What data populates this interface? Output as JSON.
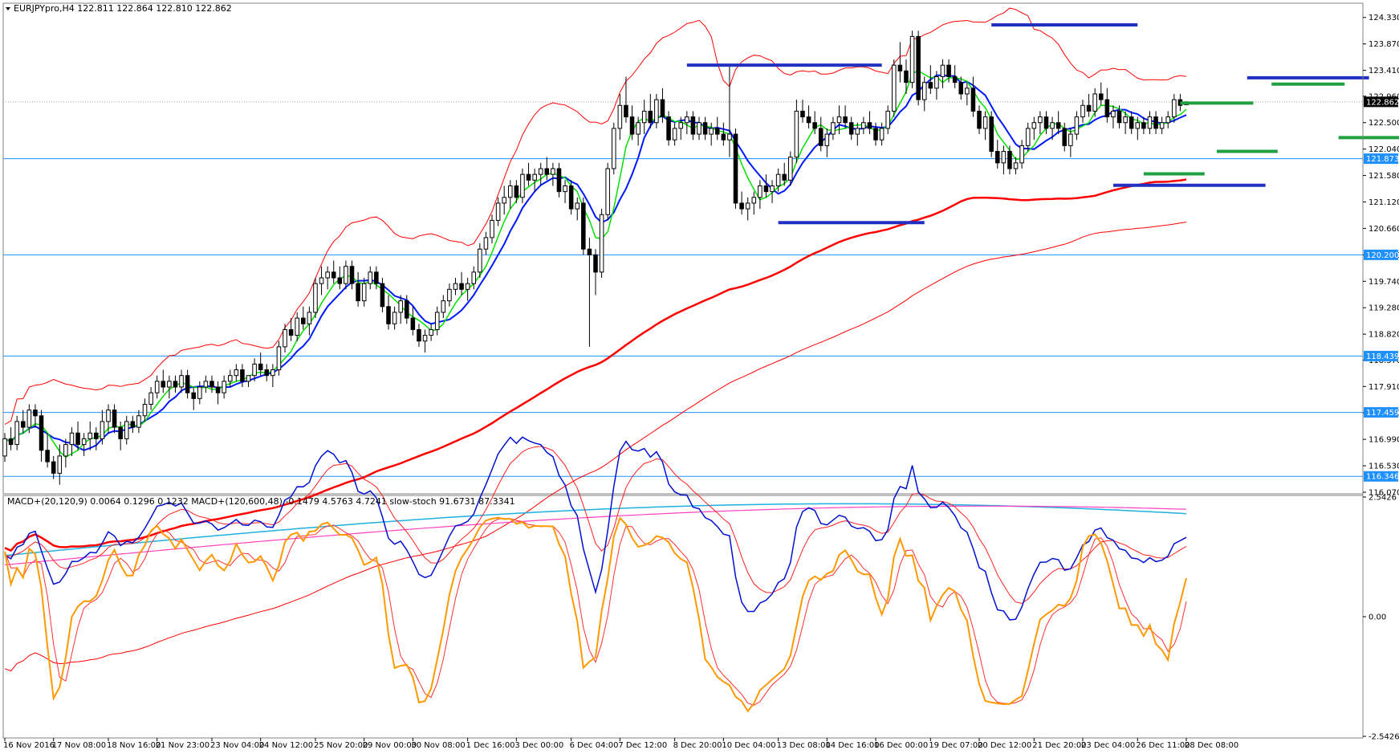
{
  "header": {
    "main_info": "EURJPYpro,H4  122.811 122.864 122.810 122.862",
    "indicator_info": "MACD+(20,120,9) 0.0064 0.1296 0.1232   MACD+(120,600,48) -0.1479 4.5763 4.7241   slow-stoch 91.6731 87.3341"
  },
  "colors": {
    "bull_body": "#ffffff",
    "bear_body": "#000000",
    "ma_green": "#00e000",
    "ma_blue": "#0018ff",
    "ma_red_thick": "#ff0000",
    "envelope_red": "#ff0000",
    "level_line": "#1e90ff",
    "lbl_blue": "#1e90ff",
    "sr_blue": "#2030c0",
    "sr_green": "#20a040",
    "stoch_orange": "#ff9900",
    "stoch_red": "#ff3030",
    "macd_blue": "#0010d0",
    "macd_red": "#ff2020",
    "macd_cyan": "#20b0e0",
    "macd_magenta": "#ff40c0"
  },
  "chart_data": {
    "type": "candlestick",
    "symbol": "EURJPYpro",
    "timeframe": "H4",
    "ylim": [
      116.07,
      124.55
    ],
    "y_ticks": [
      "124.330",
      "123.870",
      "123.410",
      "122.960",
      "122.500",
      "122.040",
      "121.580",
      "121.120",
      "120.660",
      "120.200",
      "119.740",
      "119.280",
      "118.820",
      "118.370",
      "117.910",
      "117.450",
      "116.990",
      "116.530",
      "116.070"
    ],
    "x_ticks": [
      "16 Nov 2016",
      "17 Nov 08:00",
      "18 Nov 16:00",
      "21 Nov 23:00",
      "23 Nov 04:00",
      "24 Nov 12:00",
      "25 Nov 20:00",
      "29 Nov 00:00",
      "30 Nov 08:00",
      "1 Dec 16:00",
      "3 Dec 00:00",
      "6 Dec 04:00",
      "7 Dec 12:00",
      "8 Dec 20:00",
      "10 Dec 04:00",
      "13 Dec 08:00",
      "14 Dec 16:00",
      "16 Dec 00:00",
      "19 Dec 07:00",
      "20 Dec 12:00",
      "21 Dec 20:00",
      "23 Dec 04:00",
      "26 Dec 11:00",
      "28 Dec 08:00"
    ],
    "current_price": 122.862,
    "current_price_label": "122.862",
    "horizontal_levels": [
      {
        "price": 121.873,
        "label": "121.873"
      },
      {
        "price": 120.2,
        "label": "120.200"
      },
      {
        "price": 118.439,
        "label": "118.439"
      },
      {
        "price": 117.459,
        "label": "117.459"
      },
      {
        "price": 116.346,
        "label": "116.346"
      }
    ],
    "sr_segments": [
      {
        "t1": 112,
        "t2": 144,
        "price": 123.5,
        "kind": "blue"
      },
      {
        "t1": 162,
        "t2": 186,
        "price": 124.2,
        "kind": "blue"
      },
      {
        "t1": 127,
        "t2": 151,
        "price": 120.76,
        "kind": "blue"
      },
      {
        "t1": 182,
        "t2": 207,
        "price": 121.41,
        "kind": "blue"
      },
      {
        "t1": 204,
        "t2": 224,
        "price": 123.28,
        "kind": "blue"
      },
      {
        "t1": 193,
        "t2": 205,
        "price": 122.84,
        "kind": "green"
      },
      {
        "t1": 187,
        "t2": 197,
        "price": 121.61,
        "kind": "green"
      },
      {
        "t1": 199,
        "t2": 209,
        "price": 122.0,
        "kind": "green"
      },
      {
        "t1": 208,
        "t2": 220,
        "price": 123.17,
        "kind": "green"
      },
      {
        "t1": 219,
        "t2": 230,
        "price": 122.24,
        "kind": "green"
      }
    ],
    "candles": [
      [
        116.7,
        117.1,
        116.6,
        117.0
      ],
      [
        117.0,
        117.2,
        116.8,
        116.9
      ],
      [
        116.9,
        117.4,
        116.8,
        117.3
      ],
      [
        117.3,
        117.5,
        117.1,
        117.2
      ],
      [
        117.2,
        117.6,
        117.1,
        117.5
      ],
      [
        117.5,
        117.6,
        117.2,
        117.4
      ],
      [
        117.4,
        117.5,
        116.6,
        116.8
      ],
      [
        116.8,
        117.1,
        116.5,
        116.6
      ],
      [
        116.6,
        116.7,
        116.3,
        116.4
      ],
      [
        116.4,
        116.9,
        116.2,
        116.7
      ],
      [
        116.7,
        117.0,
        116.5,
        116.9
      ],
      [
        116.9,
        117.2,
        116.7,
        117.1
      ],
      [
        117.1,
        117.3,
        116.8,
        116.9
      ],
      [
        116.9,
        117.1,
        116.7,
        117.0
      ],
      [
        117.0,
        117.3,
        116.8,
        117.1
      ],
      [
        117.1,
        117.2,
        116.8,
        117.0
      ],
      [
        117.0,
        117.5,
        116.9,
        117.3
      ],
      [
        117.3,
        117.6,
        117.1,
        117.5
      ],
      [
        117.5,
        117.6,
        117.1,
        117.2
      ],
      [
        117.2,
        117.3,
        116.8,
        117.0
      ],
      [
        117.0,
        117.4,
        116.9,
        117.3
      ],
      [
        117.3,
        117.4,
        117.1,
        117.2
      ],
      [
        117.2,
        117.5,
        117.1,
        117.4
      ],
      [
        117.4,
        117.7,
        117.3,
        117.6
      ],
      [
        117.6,
        117.9,
        117.5,
        117.8
      ],
      [
        117.8,
        118.1,
        117.7,
        118.0
      ],
      [
        118.0,
        118.2,
        117.8,
        117.9
      ],
      [
        117.9,
        118.1,
        117.7,
        118.0
      ],
      [
        118.0,
        118.1,
        117.8,
        117.9
      ],
      [
        117.9,
        118.2,
        117.8,
        118.1
      ],
      [
        118.1,
        118.2,
        117.7,
        117.8
      ],
      [
        117.8,
        117.9,
        117.5,
        117.7
      ],
      [
        117.7,
        118.0,
        117.6,
        117.9
      ],
      [
        117.9,
        118.1,
        117.8,
        118.0
      ],
      [
        118.0,
        118.1,
        117.8,
        117.9
      ],
      [
        117.9,
        118.0,
        117.6,
        117.8
      ],
      [
        117.8,
        118.1,
        117.7,
        118.0
      ],
      [
        118.0,
        118.2,
        117.9,
        118.1
      ],
      [
        118.1,
        118.3,
        118.0,
        118.2
      ],
      [
        118.2,
        118.3,
        117.9,
        118.0
      ],
      [
        118.0,
        118.1,
        117.9,
        118.1
      ],
      [
        118.1,
        118.4,
        118.0,
        118.3
      ],
      [
        118.3,
        118.5,
        118.1,
        118.2
      ],
      [
        118.2,
        118.3,
        118.0,
        118.1
      ],
      [
        118.1,
        118.3,
        117.9,
        118.2
      ],
      [
        118.2,
        118.7,
        118.1,
        118.6
      ],
      [
        118.6,
        119.0,
        118.5,
        118.9
      ],
      [
        118.9,
        119.1,
        118.7,
        118.8
      ],
      [
        118.8,
        119.2,
        118.7,
        119.1
      ],
      [
        119.1,
        119.3,
        118.9,
        119.0
      ],
      [
        119.0,
        119.3,
        118.8,
        119.2
      ],
      [
        119.2,
        119.8,
        119.1,
        119.7
      ],
      [
        119.7,
        120.0,
        119.5,
        119.8
      ],
      [
        119.8,
        120.0,
        119.6,
        119.9
      ],
      [
        119.9,
        120.1,
        119.7,
        119.8
      ],
      [
        119.8,
        120.0,
        119.6,
        119.7
      ],
      [
        119.7,
        120.1,
        119.6,
        120.0
      ],
      [
        120.0,
        120.1,
        119.6,
        119.7
      ],
      [
        119.7,
        119.9,
        119.3,
        119.4
      ],
      [
        119.4,
        119.8,
        119.3,
        119.7
      ],
      [
        119.7,
        120.0,
        119.6,
        119.9
      ],
      [
        119.9,
        120.0,
        119.6,
        119.7
      ],
      [
        119.7,
        119.8,
        119.2,
        119.3
      ],
      [
        119.3,
        119.5,
        118.9,
        119.0
      ],
      [
        119.0,
        119.3,
        118.9,
        119.2
      ],
      [
        119.2,
        119.5,
        119.0,
        119.4
      ],
      [
        119.4,
        119.5,
        119.0,
        119.1
      ],
      [
        119.1,
        119.3,
        118.8,
        118.9
      ],
      [
        118.9,
        119.0,
        118.6,
        118.7
      ],
      [
        118.7,
        118.9,
        118.5,
        118.8
      ],
      [
        118.8,
        119.0,
        118.7,
        118.9
      ],
      [
        118.9,
        119.3,
        118.8,
        119.2
      ],
      [
        119.2,
        119.5,
        119.1,
        119.4
      ],
      [
        119.4,
        119.7,
        119.3,
        119.6
      ],
      [
        119.6,
        119.8,
        119.5,
        119.7
      ],
      [
        119.7,
        119.9,
        119.5,
        119.6
      ],
      [
        119.6,
        119.8,
        119.4,
        119.7
      ],
      [
        119.7,
        120.0,
        119.6,
        119.9
      ],
      [
        119.9,
        120.4,
        119.8,
        120.3
      ],
      [
        120.3,
        120.6,
        120.2,
        120.5
      ],
      [
        120.5,
        120.9,
        120.4,
        120.8
      ],
      [
        120.8,
        121.2,
        120.7,
        121.1
      ],
      [
        121.1,
        121.4,
        120.9,
        121.2
      ],
      [
        121.2,
        121.5,
        121.0,
        121.4
      ],
      [
        121.4,
        121.5,
        121.1,
        121.2
      ],
      [
        121.2,
        121.7,
        121.1,
        121.6
      ],
      [
        121.6,
        121.8,
        121.4,
        121.5
      ],
      [
        121.5,
        121.7,
        121.3,
        121.6
      ],
      [
        121.6,
        121.8,
        121.4,
        121.7
      ],
      [
        121.7,
        121.9,
        121.5,
        121.6
      ],
      [
        121.6,
        121.8,
        121.4,
        121.7
      ],
      [
        121.7,
        121.8,
        121.2,
        121.3
      ],
      [
        121.3,
        121.5,
        121.1,
        121.4
      ],
      [
        121.4,
        121.5,
        120.9,
        121.0
      ],
      [
        121.0,
        121.2,
        120.8,
        121.1
      ],
      [
        121.1,
        121.2,
        120.2,
        120.3
      ],
      [
        120.3,
        120.5,
        118.6,
        120.2
      ],
      [
        120.2,
        120.3,
        119.5,
        119.9
      ],
      [
        119.9,
        121.0,
        119.8,
        120.9
      ],
      [
        120.9,
        121.8,
        120.8,
        121.7
      ],
      [
        121.7,
        122.5,
        121.6,
        122.4
      ],
      [
        122.4,
        123.0,
        122.2,
        122.8
      ],
      [
        122.8,
        123.3,
        122.5,
        122.6
      ],
      [
        122.6,
        122.8,
        122.2,
        122.3
      ],
      [
        122.3,
        122.6,
        122.1,
        122.5
      ],
      [
        122.5,
        122.9,
        122.3,
        122.7
      ],
      [
        122.7,
        123.0,
        122.4,
        122.5
      ],
      [
        122.5,
        123.0,
        122.4,
        122.9
      ],
      [
        122.9,
        123.1,
        122.5,
        122.6
      ],
      [
        122.6,
        122.7,
        122.1,
        122.2
      ],
      [
        122.2,
        122.5,
        122.1,
        122.4
      ],
      [
        122.4,
        122.6,
        122.2,
        122.5
      ],
      [
        122.5,
        122.7,
        122.3,
        122.6
      ],
      [
        122.6,
        122.7,
        122.2,
        122.3
      ],
      [
        122.3,
        122.6,
        122.2,
        122.5
      ],
      [
        122.5,
        122.6,
        122.2,
        122.3
      ],
      [
        122.3,
        122.5,
        122.1,
        122.4
      ],
      [
        122.4,
        122.6,
        122.2,
        122.3
      ],
      [
        122.3,
        122.5,
        122.1,
        122.2
      ],
      [
        122.2,
        123.5,
        121.9,
        122.3
      ],
      [
        122.3,
        122.4,
        121.0,
        121.1
      ],
      [
        121.1,
        121.3,
        120.9,
        121.0
      ],
      [
        121.0,
        121.2,
        120.8,
        121.1
      ],
      [
        121.1,
        121.3,
        120.9,
        121.2
      ],
      [
        121.2,
        121.5,
        121.0,
        121.4
      ],
      [
        121.4,
        121.6,
        121.2,
        121.3
      ],
      [
        121.3,
        121.5,
        121.1,
        121.4
      ],
      [
        121.4,
        121.7,
        121.3,
        121.6
      ],
      [
        121.6,
        121.8,
        121.4,
        121.5
      ],
      [
        121.5,
        122.0,
        121.4,
        121.9
      ],
      [
        121.9,
        122.9,
        121.8,
        122.7
      ],
      [
        122.7,
        122.9,
        122.5,
        122.6
      ],
      [
        122.6,
        122.8,
        122.4,
        122.5
      ],
      [
        122.5,
        122.7,
        122.3,
        122.4
      ],
      [
        122.4,
        122.6,
        122.0,
        122.1
      ],
      [
        122.1,
        122.4,
        121.9,
        122.3
      ],
      [
        122.3,
        122.6,
        122.2,
        122.5
      ],
      [
        122.5,
        122.8,
        122.3,
        122.6
      ],
      [
        122.6,
        122.8,
        122.4,
        122.5
      ],
      [
        122.5,
        122.6,
        122.2,
        122.3
      ],
      [
        122.3,
        122.5,
        122.1,
        122.4
      ],
      [
        122.4,
        122.6,
        122.3,
        122.5
      ],
      [
        122.5,
        122.7,
        122.3,
        122.4
      ],
      [
        122.4,
        122.5,
        122.1,
        122.2
      ],
      [
        122.2,
        122.5,
        122.1,
        122.4
      ],
      [
        122.4,
        122.8,
        122.3,
        122.7
      ],
      [
        122.7,
        123.6,
        122.6,
        123.5
      ],
      [
        123.5,
        123.9,
        123.2,
        123.4
      ],
      [
        123.4,
        123.6,
        123.0,
        123.2
      ],
      [
        123.2,
        124.1,
        123.1,
        124.0
      ],
      [
        124.0,
        124.1,
        122.8,
        122.9
      ],
      [
        122.9,
        123.3,
        122.7,
        123.2
      ],
      [
        123.2,
        123.5,
        123.0,
        123.1
      ],
      [
        123.1,
        123.4,
        122.9,
        123.3
      ],
      [
        123.3,
        123.6,
        123.1,
        123.5
      ],
      [
        123.5,
        123.6,
        123.2,
        123.3
      ],
      [
        123.3,
        123.5,
        123.1,
        123.2
      ],
      [
        123.2,
        123.3,
        122.9,
        123.0
      ],
      [
        123.0,
        123.2,
        122.8,
        123.1
      ],
      [
        123.1,
        123.3,
        122.6,
        122.7
      ],
      [
        122.7,
        122.8,
        122.3,
        122.4
      ],
      [
        122.4,
        122.7,
        122.2,
        122.6
      ],
      [
        122.6,
        122.7,
        121.9,
        122.0
      ],
      [
        122.0,
        122.2,
        121.7,
        121.8
      ],
      [
        121.8,
        122.1,
        121.6,
        122.0
      ],
      [
        122.0,
        122.1,
        121.6,
        121.7
      ],
      [
        121.7,
        121.9,
        121.6,
        121.8
      ],
      [
        121.8,
        122.2,
        121.7,
        122.1
      ],
      [
        122.1,
        122.5,
        122.0,
        122.4
      ],
      [
        122.4,
        122.6,
        122.2,
        122.5
      ],
      [
        122.5,
        122.7,
        122.3,
        122.6
      ],
      [
        122.6,
        122.7,
        122.3,
        122.4
      ],
      [
        122.4,
        122.6,
        122.2,
        122.5
      ],
      [
        122.5,
        122.7,
        122.3,
        122.4
      ],
      [
        122.4,
        122.5,
        122.0,
        122.1
      ],
      [
        122.1,
        122.4,
        121.9,
        122.3
      ],
      [
        122.3,
        122.7,
        122.2,
        122.6
      ],
      [
        122.6,
        122.9,
        122.5,
        122.8
      ],
      [
        122.8,
        123.0,
        122.6,
        122.7
      ],
      [
        122.7,
        123.1,
        122.6,
        123.0
      ],
      [
        123.0,
        123.2,
        122.8,
        122.9
      ],
      [
        122.9,
        123.1,
        122.5,
        122.6
      ],
      [
        122.6,
        122.8,
        122.4,
        122.7
      ],
      [
        122.7,
        122.8,
        122.4,
        122.5
      ],
      [
        122.5,
        122.7,
        122.3,
        122.6
      ],
      [
        122.6,
        122.7,
        122.3,
        122.4
      ],
      [
        122.4,
        122.6,
        122.2,
        122.5
      ],
      [
        122.5,
        122.6,
        122.3,
        122.4
      ],
      [
        122.4,
        122.7,
        122.3,
        122.6
      ],
      [
        122.6,
        122.7,
        122.3,
        122.4
      ],
      [
        122.4,
        122.6,
        122.3,
        122.5
      ],
      [
        122.5,
        122.7,
        122.4,
        122.6
      ],
      [
        122.6,
        123.0,
        122.5,
        122.9
      ],
      [
        122.9,
        123.0,
        122.7,
        122.8
      ],
      [
        122.811,
        122.864,
        122.81,
        122.862
      ]
    ],
    "indicator_panel": {
      "y_ticks": [
        "2.5426",
        "0.00",
        "-2.5426"
      ],
      "ylim": [
        -2.5426,
        2.5426
      ]
    }
  }
}
